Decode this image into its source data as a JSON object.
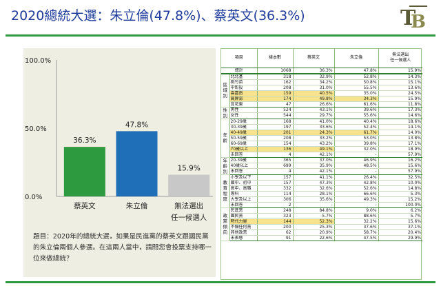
{
  "title": "2020總統大選：朱立倫(47.8%)、蔡英文(36.3%)",
  "question": "題目：2020年的總統大選，如果是民進黨的蔡英文跟國民黨的朱立倫兩個人參選。在這兩人當中，請問您會投票支持哪一位來做總統？",
  "colors": {
    "bar_tsai": "#2e9a3f",
    "bar_chu": "#1e6fb8",
    "bar_none": "#c8c8c8",
    "accent": "#2e9a3f",
    "title": "#1f3c9c",
    "highlight": "#f7e38d"
  },
  "chart_data": {
    "type": "bar",
    "categories": [
      "蔡英文",
      "朱立倫",
      "無法選出\n任一候選人"
    ],
    "values": [
      36.3,
      47.8,
      15.9
    ],
    "value_labels": [
      "36.3%",
      "47.8%",
      "15.9%"
    ],
    "y_ticks": [
      "100.0%",
      "50.0%",
      "0.0%"
    ],
    "ylim": [
      0,
      100
    ],
    "grid": false
  },
  "table": {
    "headers": [
      "項目",
      "樣本數",
      "蔡英文",
      "朱立倫",
      "無法選出\n任一候選人"
    ],
    "total": {
      "label": "總計",
      "n": "1068",
      "v": [
        "36.3%",
        "47.8%",
        "15.9%"
      ]
    },
    "groups": [
      {
        "name": "區\n域\n別",
        "rows": [
          {
            "label": "北北基",
            "n": "318",
            "v": [
              "32.9%",
              "52.8%",
              "14.3%"
            ]
          },
          {
            "label": "桃竹苗",
            "n": "162",
            "v": [
              "34.2%",
              "50.8%",
              "15.1%"
            ]
          },
          {
            "label": "中彰投",
            "n": "208",
            "v": [
              "31.0%",
              "55.5%",
              "13.6%"
            ]
          },
          {
            "label": "雲嘉南",
            "n": "159",
            "v": [
              "40.5%",
              "35.0%",
              "24.5%"
            ],
            "hl": [
              0
            ]
          },
          {
            "label": "高屏澎",
            "n": "174",
            "v": [
              "49.8%",
              "34.3%",
              "15.9%"
            ],
            "hl": [
              0,
              1
            ]
          },
          {
            "label": "宜花東",
            "n": "47",
            "v": [
              "26.6%",
              "61.6%",
              "11.8%"
            ]
          }
        ]
      },
      {
        "name": "性\n別",
        "rows": [
          {
            "label": "男性",
            "n": "524",
            "v": [
              "43.1%",
              "39.6%",
              "17.3%"
            ]
          },
          {
            "label": "女性",
            "n": "544",
            "v": [
              "29.7%",
              "55.6%",
              "14.6%"
            ]
          }
        ]
      },
      {
        "name": "年\n齡",
        "rows": [
          {
            "label": "20-29歲",
            "n": "168",
            "v": [
              "41.0%",
              "40.4%",
              "18.6%"
            ]
          },
          {
            "label": "30-39歲",
            "n": "197",
            "v": [
              "33.6%",
              "52.4%",
              "14.1%"
            ]
          },
          {
            "label": "40-49歲",
            "n": "201",
            "v": [
              "24.3%",
              "61.7%",
              "14.0%"
            ],
            "hl": [
              0,
              1
            ]
          },
          {
            "label": "50-59歲",
            "n": "208",
            "v": [
              "33.2%",
              "53.0%",
              "13.8%"
            ]
          },
          {
            "label": "60-69歲",
            "n": "154",
            "v": [
              "43.2%",
              "39.8%",
              "17.1%"
            ]
          },
          {
            "label": "70歲以上",
            "n": "136",
            "v": [
              "49.1%",
              "32.0%",
              "18.9%"
            ],
            "hl": [
              0
            ]
          },
          {
            "label": "未回答",
            "n": "4",
            "v": [
              "42.1%",
              "-",
              "57.9%"
            ]
          }
        ]
      },
      {
        "name": "年\n齡\n別",
        "rows": [
          {
            "label": "20-39歲",
            "n": "365",
            "v": [
              "37.0%",
              "46.9%",
              "16.2%"
            ]
          },
          {
            "label": "40歲以上",
            "n": "699",
            "v": [
              "35.9%",
              "48.5%",
              "15.6%"
            ]
          },
          {
            "label": "未回答",
            "n": "4",
            "v": [
              "42.1%",
              "-",
              "57.9%"
            ]
          }
        ]
      },
      {
        "name": "教\n育\n程\n度",
        "rows": [
          {
            "label": "小學及以下",
            "n": "157",
            "v": [
              "41.1%",
              "26.4%",
              "32.5%"
            ]
          },
          {
            "label": "國中、初中",
            "n": "157",
            "v": [
              "47.3%",
              "42.8%",
              "10.0%"
            ]
          },
          {
            "label": "高中、高職",
            "n": "332",
            "v": [
              "32.6%",
              "52.6%",
              "14.8%"
            ]
          },
          {
            "label": "專科",
            "n": "114",
            "v": [
              "28.1%",
              "66.6%",
              "5.3%"
            ]
          },
          {
            "label": "大學及以上",
            "n": "306",
            "v": [
              "35.6%",
              "49.3%",
              "15.2%"
            ]
          },
          {
            "label": "未回答",
            "n": "2",
            "v": [
              "-",
              "-",
              "100.0%"
            ]
          }
        ]
      },
      {
        "name": "政\n黨\n傾\n向",
        "rows": [
          {
            "label": "民進黨",
            "n": "248",
            "v": [
              "84.8%",
              "9.0%",
              "6.2%"
            ]
          },
          {
            "label": "國民黨",
            "n": "323",
            "v": [
              "5.7%",
              "88.6%",
              "5.7%"
            ]
          },
          {
            "label": "時代力量",
            "n": "144",
            "v": [
              "52.3%",
              "32.2%",
              "15.6%"
            ],
            "hl": [
              0
            ]
          },
          {
            "label": "不偏任何黨",
            "n": "200",
            "v": [
              "25.3%",
              "37.6%",
              "37.1%"
            ]
          },
          {
            "label": "其他政黨",
            "n": "62",
            "v": [
              "20.9%",
              "58.7%",
              "20.4%"
            ]
          },
          {
            "label": "未表態",
            "n": "91",
            "v": [
              "22.6%",
              "47.5%",
              "29.9%"
            ]
          }
        ]
      }
    ]
  }
}
